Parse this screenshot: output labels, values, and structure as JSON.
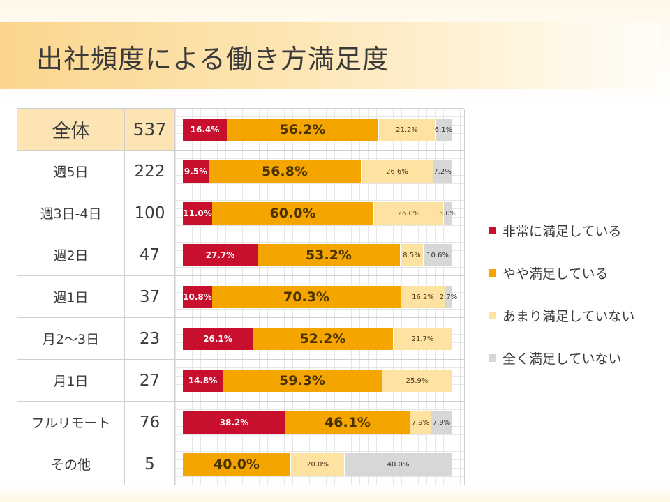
{
  "title": "出社頻度による働き方満足度",
  "chart_data": {
    "type": "bar",
    "orientation": "horizontal",
    "stacked": true,
    "unit": "%",
    "title": "出社頻度による働き方満足度",
    "legend_position": "right",
    "categories": [
      "全体",
      "週5日",
      "週3日-4日",
      "週2日",
      "週1日",
      "月2〜3日",
      "月1日",
      "フルリモート",
      "その他"
    ],
    "counts": [
      "537",
      "222",
      "100",
      "47",
      "37",
      "23",
      "27",
      "76",
      "5"
    ],
    "series": [
      {
        "key": "very",
        "name": "非常に満足している",
        "color": "#c8102e",
        "values": [
          16.4,
          9.5,
          11.0,
          27.7,
          10.8,
          26.1,
          14.8,
          38.2,
          0
        ],
        "labels": [
          "16.4%",
          "9.5%",
          "11.0%",
          "27.7%",
          "10.8%",
          "26.1%",
          "14.8%",
          "38.2%",
          ""
        ]
      },
      {
        "key": "some",
        "name": "やや満足している",
        "color": "#f5a500",
        "values": [
          56.2,
          56.8,
          60.0,
          53.2,
          70.3,
          52.2,
          59.3,
          46.1,
          40.0
        ],
        "labels": [
          "56.2%",
          "56.8%",
          "60.0%",
          "53.2%",
          "70.3%",
          "52.2%",
          "59.3%",
          "46.1%",
          "40.0%"
        ]
      },
      {
        "key": "not",
        "name": "あまり満足していない",
        "color": "#fde2a1",
        "values": [
          21.2,
          26.6,
          26.0,
          8.5,
          16.2,
          21.7,
          25.9,
          7.9,
          20.0
        ],
        "labels": [
          "21.2%",
          "26.6%",
          "26.0%",
          "8.5%",
          "16.2%",
          "21.7%",
          "25.9%",
          "7.9%",
          "20.0%"
        ]
      },
      {
        "key": "none",
        "name": "全く満足していない",
        "color": "#d7d7d7",
        "values": [
          6.1,
          7.2,
          3.0,
          10.6,
          2.7,
          0,
          0,
          7.9,
          40.0
        ],
        "labels": [
          "6.1%",
          "7.2%",
          "3.0%",
          "10.6%",
          "2.7%",
          "",
          "",
          "7.9%",
          "40.0%"
        ]
      }
    ]
  }
}
